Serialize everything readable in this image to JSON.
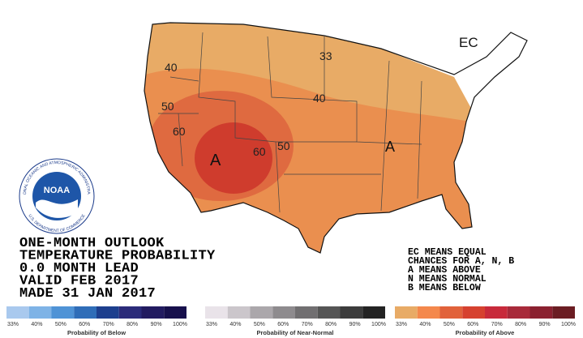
{
  "map": {
    "contour_labels": [
      "40",
      "50",
      "60",
      "33",
      "40",
      "60",
      "50"
    ],
    "region_labels": [
      "A",
      "A",
      "EC"
    ]
  },
  "logo": {
    "name": "NOAA",
    "ring_top": "NATIONAL OCEANIC AND ATMOSPHERIC ADMINISTRATION",
    "ring_bottom": "U.S. DEPARTMENT OF COMMERCE"
  },
  "title_block": {
    "lines": [
      "ONE-MONTH OUTLOOK",
      "TEMPERATURE PROBABILITY",
      "0.0 MONTH LEAD",
      "VALID FEB 2017",
      "MADE 31 JAN 2017"
    ]
  },
  "key": {
    "lines": [
      "EC MEANS EQUAL",
      "CHANCES FOR A, N, B",
      "A MEANS ABOVE",
      "N MEANS NORMAL",
      "B MEANS BELOW"
    ]
  },
  "legend": [
    {
      "title": "Probability of Below",
      "ticks": [
        "33%",
        "40%",
        "50%",
        "60%",
        "70%",
        "80%",
        "90%",
        "100%"
      ],
      "colors": [
        "#a9c9ee",
        "#7eb3e6",
        "#4f93d6",
        "#2f6db8",
        "#1d3f8e",
        "#2b2b7a",
        "#221b60",
        "#17104c"
      ]
    },
    {
      "title": "Probability of Near-Normal",
      "ticks": [
        "33%",
        "40%",
        "50%",
        "60%",
        "70%",
        "80%",
        "90%",
        "100%"
      ],
      "colors": [
        "#e9e3e9",
        "#cbc6cb",
        "#aba7ab",
        "#8e8b8e",
        "#716f71",
        "#555555",
        "#3c3c3c",
        "#232323"
      ]
    },
    {
      "title": "Probability of Above",
      "ticks": [
        "33%",
        "40%",
        "50%",
        "60%",
        "70%",
        "80%",
        "90%",
        "100%"
      ],
      "colors": [
        "#e8ab66",
        "#f4884c",
        "#e1623b",
        "#d6412f",
        "#c82a3b",
        "#a82a3a",
        "#8b2130",
        "#6b1d23"
      ]
    }
  ]
}
